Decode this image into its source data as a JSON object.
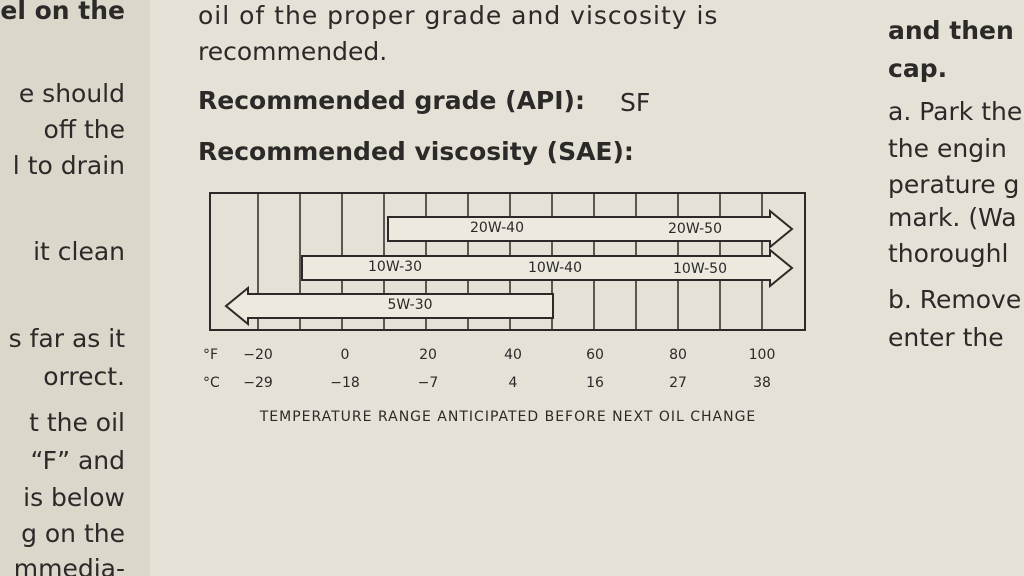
{
  "left_column": {
    "lines": [
      "el on the",
      "e should",
      "off the",
      "l to drain",
      "it clean",
      "s far as it",
      "orrect.",
      "t the oil",
      "“F” and",
      "is below",
      "g on the",
      "mmedia-"
    ]
  },
  "main": {
    "paragraph_lines": [
      "oil of the proper grade and viscosity is",
      "recommended."
    ],
    "grade_label": "Recommended grade (API):",
    "grade_value": "SF",
    "viscosity_label": "Recommended viscosity (SAE):"
  },
  "chart": {
    "oil_labels": [
      "20W-40",
      "20W-50",
      "10W-30",
      "10W-40",
      "10W-50",
      "5W-30"
    ],
    "fahrenheit_unit": "°F",
    "fahrenheit": [
      "−20",
      "0",
      "20",
      "40",
      "60",
      "80",
      "100"
    ],
    "celsius_unit": "°C",
    "celsius": [
      "−29",
      "−18",
      "−7",
      "4",
      "16",
      "27",
      "38"
    ],
    "caption": "TEMPERATURE RANGE ANTICIPATED BEFORE NEXT OIL CHANGE"
  },
  "right_column": {
    "lines": [
      "and then",
      "cap.",
      "a. Park the",
      "the engin",
      "perature g",
      "mark. (Wa",
      "thoroughl",
      "b. Remove",
      "enter the"
    ]
  }
}
